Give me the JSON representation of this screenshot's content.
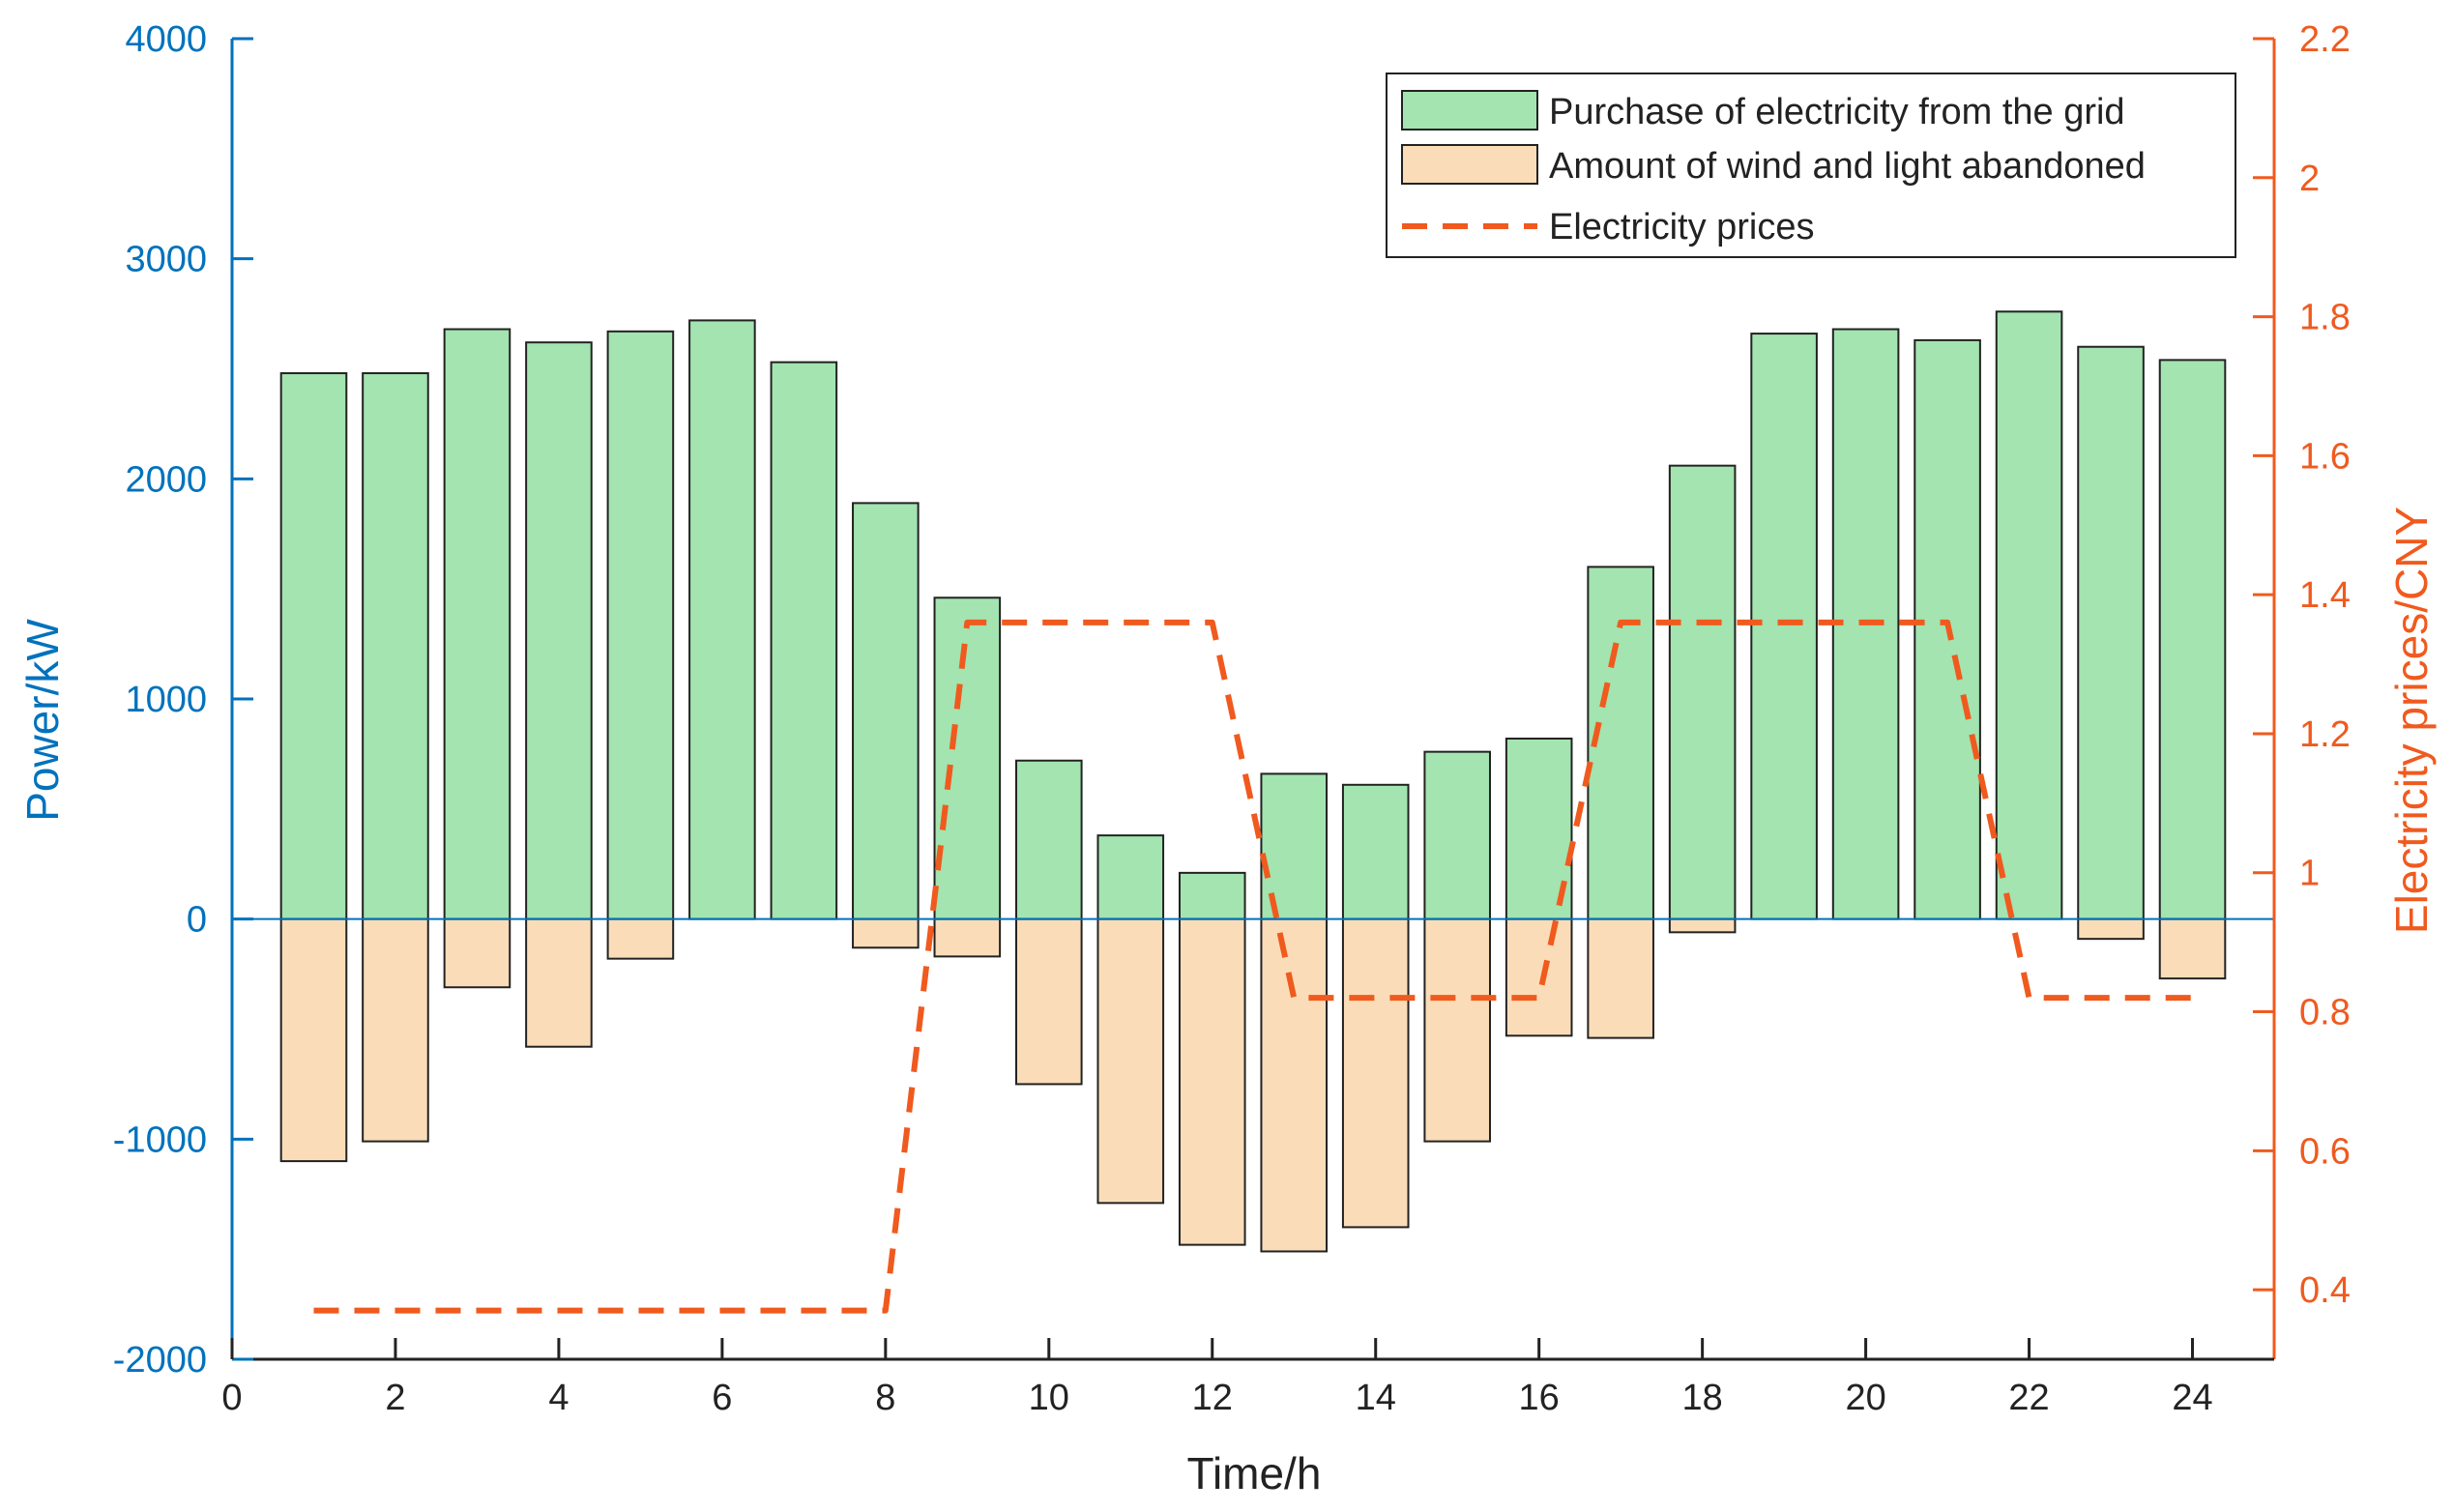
{
  "chart_data": {
    "type": "bar",
    "title": "",
    "x": [
      1,
      2,
      3,
      4,
      5,
      6,
      7,
      8,
      9,
      10,
      11,
      12,
      13,
      14,
      15,
      16,
      17,
      18,
      19,
      20,
      21,
      22,
      23,
      24
    ],
    "xlabel": "Time/h",
    "ylabel_left": "Power/kW",
    "ylabel_right": "Electricity prices/CNY",
    "xlim": [
      0,
      25
    ],
    "ylim_left": [
      -2000,
      4000
    ],
    "ylim_right": [
      0.3,
      2.2
    ],
    "xticks": [
      0,
      2,
      4,
      6,
      8,
      10,
      12,
      14,
      16,
      18,
      20,
      22,
      24
    ],
    "yticks_left": [
      -2000,
      -1000,
      0,
      1000,
      2000,
      3000,
      4000
    ],
    "yticks_right": [
      0.4,
      0.6,
      0.8,
      1,
      1.2,
      1.4,
      1.6,
      1.8,
      2,
      2.2
    ],
    "xtick_labels": [
      "0",
      "2",
      "4",
      "6",
      "8",
      "10",
      "12",
      "14",
      "16",
      "18",
      "20",
      "22",
      "24"
    ],
    "ytick_labels_left": [
      "-2000",
      "-1000",
      "0",
      "1000",
      "2000",
      "3000",
      "4000"
    ],
    "ytick_labels_right": [
      "0.4",
      "0.6",
      "0.8",
      "1",
      "1.2",
      "1.4",
      "1.6",
      "1.8",
      "2",
      "2.2"
    ],
    "series": [
      {
        "name": "Purchase of electricity from the grid",
        "kind": "bar",
        "axis": "left",
        "color": "#A3E4B0",
        "values": [
          2480,
          2480,
          2680,
          2620,
          2670,
          2720,
          2530,
          1890,
          1460,
          720,
          380,
          210,
          660,
          610,
          760,
          820,
          1600,
          2060,
          2660,
          2680,
          2630,
          2760,
          2600,
          2540
        ]
      },
      {
        "name": "Amount of wind and light abandoned",
        "kind": "bar",
        "axis": "left",
        "color": "#FADDB8",
        "values": [
          -1100,
          -1010,
          -310,
          -580,
          -180,
          0,
          0,
          -130,
          -170,
          -750,
          -1290,
          -1480,
          -1510,
          -1400,
          -1010,
          -530,
          -540,
          -60,
          0,
          0,
          0,
          0,
          -90,
          -270
        ]
      },
      {
        "name": "Electricity prices",
        "kind": "line",
        "axis": "right",
        "style": "dashed",
        "color": "#F05A1E",
        "values": [
          0.37,
          0.37,
          0.37,
          0.37,
          0.37,
          0.37,
          0.37,
          0.37,
          1.36,
          1.36,
          1.36,
          1.36,
          0.82,
          0.82,
          0.82,
          0.82,
          1.36,
          1.36,
          1.36,
          1.36,
          1.36,
          0.82,
          0.82,
          0.82
        ]
      }
    ],
    "legend_position": "top-right",
    "colors": {
      "left_axis": "#0072BD",
      "right_axis": "#F05A1E",
      "zero_line": "#0072BD"
    }
  }
}
